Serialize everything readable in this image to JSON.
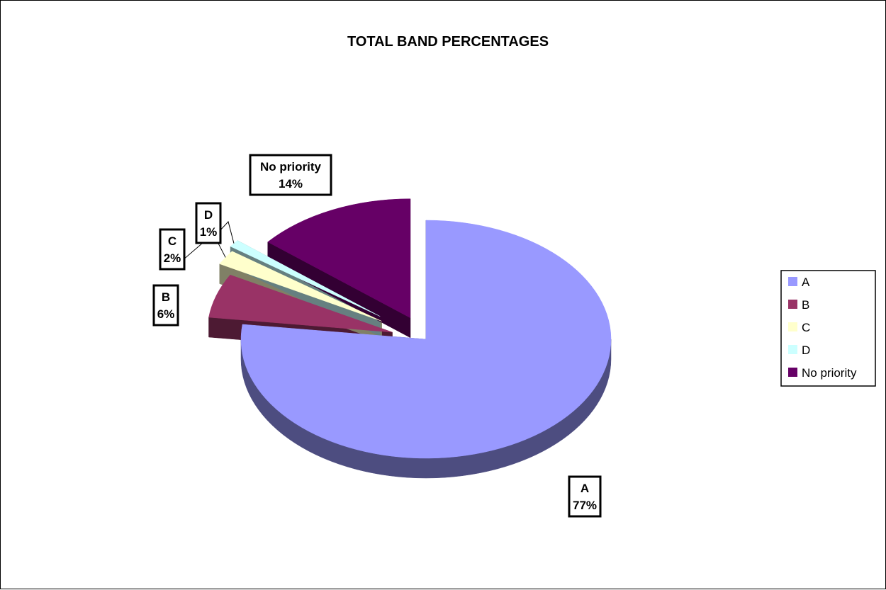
{
  "chart_data": {
    "type": "pie",
    "title": "TOTAL BAND PERCENTAGES",
    "style": "3d-exploded",
    "categories": [
      "A",
      "B",
      "C",
      "D",
      "No priority"
    ],
    "values": [
      77,
      6,
      2,
      1,
      14
    ],
    "value_labels": [
      "77%",
      "6%",
      "2%",
      "1%",
      "14%"
    ],
    "colors": [
      "#9999ff",
      "#993366",
      "#ffffcc",
      "#ccffff",
      "#660066"
    ],
    "side_colors": [
      "#4d4d80",
      "#4d1a33",
      "#808066",
      "#668080",
      "#330033"
    ],
    "legend": {
      "position": "right",
      "entries": [
        "A",
        "B",
        "C",
        "D",
        "No priority"
      ]
    },
    "data_labels": {
      "show_category": true,
      "show_percent": true,
      "boxed": true
    }
  }
}
